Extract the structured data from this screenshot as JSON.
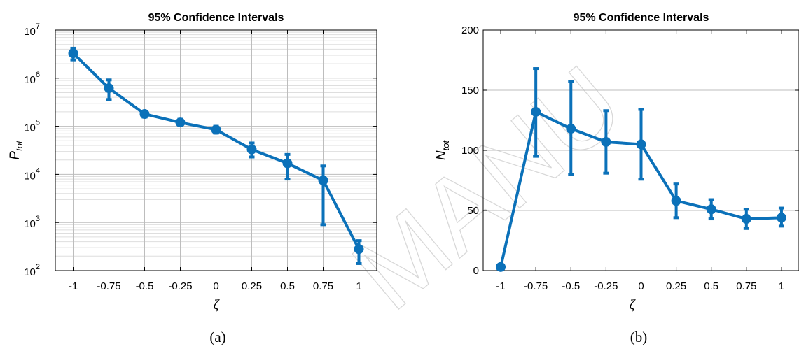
{
  "colors": {
    "series": "#0b71b9",
    "grid_major": "#bdbdbd",
    "grid_minor": "#dedede",
    "axis": "#000000"
  },
  "watermark": "MANU",
  "chart_data": [
    {
      "type": "line",
      "title": "95% Confidence Intervals",
      "xlabel": "ζ",
      "ylabel": "P",
      "ylabel_sub": "tot",
      "caption": "(a)",
      "yscale": "log",
      "xlim": [
        -1.125,
        1.125
      ],
      "ylim": [
        100,
        10000000
      ],
      "grid": "major and minor",
      "xticks": [
        "-1",
        "-0.75",
        "-0.5",
        "-0.25",
        "0",
        "0.25",
        "0.5",
        "0.75",
        "1"
      ],
      "yticks": [
        {
          "value": 100,
          "base": "10",
          "exp": "2"
        },
        {
          "value": 1000,
          "base": "10",
          "exp": "3"
        },
        {
          "value": 10000,
          "base": "10",
          "exp": "4"
        },
        {
          "value": 100000,
          "base": "10",
          "exp": "5"
        },
        {
          "value": 1000000,
          "base": "10",
          "exp": "6"
        },
        {
          "value": 10000000,
          "base": "10",
          "exp": "7"
        }
      ],
      "series": [
        {
          "x": [
            -1,
            -0.75,
            -0.5,
            -0.25,
            0,
            0.25,
            0.5,
            0.75,
            1
          ],
          "y": [
            3300000,
            620000,
            180000,
            120000,
            85000,
            33000,
            17000,
            7500,
            280
          ],
          "lower": [
            2400000,
            360000,
            155000,
            105000,
            72000,
            23000,
            8000,
            900,
            140
          ],
          "upper": [
            4200000,
            920000,
            205000,
            140000,
            100000,
            45000,
            26000,
            15000,
            420
          ]
        }
      ]
    },
    {
      "type": "line",
      "title": "95% Confidence Intervals",
      "xlabel": "ζ",
      "ylabel": "N",
      "ylabel_sub": "tot",
      "caption": "(b)",
      "xlim": [
        -1.125,
        1.125
      ],
      "ylim": [
        0,
        200
      ],
      "grid": "major horizontal",
      "xticks": [
        "-1",
        "-0.75",
        "-0.5",
        "-0.25",
        "0",
        "0.25",
        "0.5",
        "0.75",
        "1"
      ],
      "yticks": [
        {
          "value": 0,
          "label": "0"
        },
        {
          "value": 50,
          "label": "50"
        },
        {
          "value": 100,
          "label": "100"
        },
        {
          "value": 150,
          "label": "150"
        },
        {
          "value": 200,
          "label": "200"
        }
      ],
      "series": [
        {
          "x": [
            -1,
            -0.75,
            -0.5,
            -0.25,
            0,
            0.25,
            0.5,
            0.75,
            1
          ],
          "y": [
            3,
            132,
            118,
            107,
            105,
            58,
            51,
            43,
            44
          ],
          "lower": [
            3,
            95,
            80,
            81,
            76,
            44,
            43,
            35,
            37
          ],
          "upper": [
            3,
            168,
            157,
            133,
            134,
            72,
            59,
            51,
            52
          ]
        }
      ]
    }
  ]
}
